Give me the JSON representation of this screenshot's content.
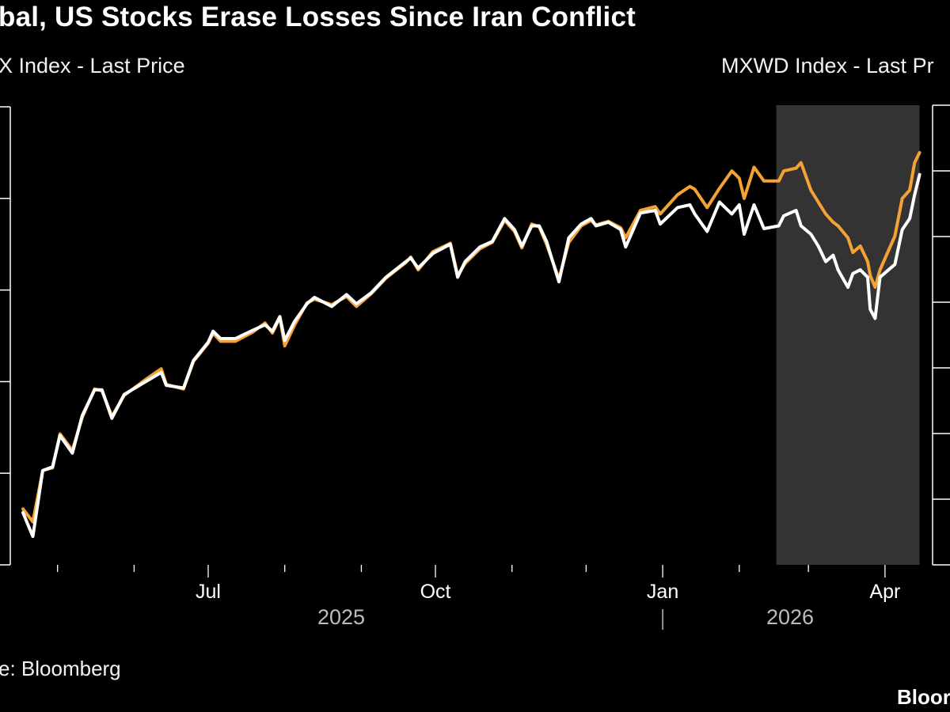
{
  "header": {
    "title": "bal, US Stocks Erase Losses Since Iran Conflict",
    "left_axis_label": "X Index - Last Price",
    "right_axis_label": "MXWD Index - Last Pr"
  },
  "footer": {
    "source": "e: Bloomberg",
    "logo": "Bloor"
  },
  "colors": {
    "background": "#000000",
    "white_series": "#ffffff",
    "orange_series": "#f5a234",
    "highlight": "#333333"
  },
  "chart_data": {
    "type": "line",
    "title": "bal, US Stocks Erase Losses Since Iran Conflict",
    "ylabel": "X Index - Last Price",
    "y2label": "MXWD Index - Last Pr",
    "ylim": [
      0,
      5
    ],
    "grid": false,
    "legend": "none",
    "x_tick_labels": [
      "Jul",
      "Oct",
      "Jan",
      "Apr"
    ],
    "x_tick_dates": [
      "2025-07-01",
      "2025-10-01",
      "2026-01-01",
      "2026-04-01"
    ],
    "year_labels": [
      "2025",
      "2026"
    ],
    "highlight_range": [
      "2026-02-16",
      "2026-04-15"
    ],
    "series": [
      {
        "color": "#ffffff",
        "points": [
          [
            "2025-04-17",
            0.57
          ],
          [
            "2025-04-21",
            0.31
          ],
          [
            "2025-04-25",
            1.03
          ],
          [
            "2025-04-29",
            1.07
          ],
          [
            "2025-05-02",
            1.41
          ],
          [
            "2025-05-07",
            1.22
          ],
          [
            "2025-05-11",
            1.63
          ],
          [
            "2025-05-16",
            1.91
          ],
          [
            "2025-05-19",
            1.91
          ],
          [
            "2025-05-23",
            1.6
          ],
          [
            "2025-05-28",
            1.86
          ],
          [
            "2025-06-05",
            1.99
          ],
          [
            "2025-06-12",
            2.1
          ],
          [
            "2025-06-14",
            1.96
          ],
          [
            "2025-06-21",
            1.93
          ],
          [
            "2025-06-25",
            2.23
          ],
          [
            "2025-07-01",
            2.43
          ],
          [
            "2025-07-03",
            2.55
          ],
          [
            "2025-07-06",
            2.47
          ],
          [
            "2025-07-12",
            2.47
          ],
          [
            "2025-07-19",
            2.56
          ],
          [
            "2025-07-24",
            2.62
          ],
          [
            "2025-07-27",
            2.55
          ],
          [
            "2025-07-30",
            2.71
          ],
          [
            "2025-08-01",
            2.45
          ],
          [
            "2025-08-05",
            2.66
          ],
          [
            "2025-08-10",
            2.85
          ],
          [
            "2025-08-13",
            2.92
          ],
          [
            "2025-08-20",
            2.82
          ],
          [
            "2025-08-26",
            2.95
          ],
          [
            "2025-08-30",
            2.85
          ],
          [
            "2025-09-05",
            2.97
          ],
          [
            "2025-09-11",
            3.14
          ],
          [
            "2025-09-19",
            3.31
          ],
          [
            "2025-09-21",
            3.35
          ],
          [
            "2025-09-24",
            3.24
          ],
          [
            "2025-09-30",
            3.4
          ],
          [
            "2025-10-07",
            3.5
          ],
          [
            "2025-10-10",
            3.14
          ],
          [
            "2025-10-13",
            3.31
          ],
          [
            "2025-10-19",
            3.47
          ],
          [
            "2025-10-24",
            3.53
          ],
          [
            "2025-10-29",
            3.78
          ],
          [
            "2025-11-02",
            3.66
          ],
          [
            "2025-11-05",
            3.48
          ],
          [
            "2025-11-09",
            3.7
          ],
          [
            "2025-11-12",
            3.7
          ],
          [
            "2025-11-15",
            3.53
          ],
          [
            "2025-11-20",
            3.09
          ],
          [
            "2025-11-24",
            3.57
          ],
          [
            "2025-11-29",
            3.72
          ],
          [
            "2025-12-03",
            3.78
          ],
          [
            "2025-12-05",
            3.7
          ],
          [
            "2025-12-10",
            3.74
          ],
          [
            "2025-12-15",
            3.66
          ],
          [
            "2025-12-17",
            3.47
          ],
          [
            "2025-12-23",
            3.84
          ],
          [
            "2025-12-29",
            3.87
          ],
          [
            "2025-12-31",
            3.72
          ],
          [
            "2026-01-07",
            3.9
          ],
          [
            "2026-01-12",
            3.93
          ],
          [
            "2026-01-14",
            3.83
          ],
          [
            "2026-01-19",
            3.64
          ],
          [
            "2026-01-24",
            3.96
          ],
          [
            "2026-01-29",
            3.83
          ],
          [
            "2026-02-01",
            3.93
          ],
          [
            "2026-02-03",
            3.61
          ],
          [
            "2026-02-07",
            3.93
          ],
          [
            "2026-02-11",
            3.67
          ],
          [
            "2026-02-17",
            3.7
          ],
          [
            "2026-02-19",
            3.81
          ],
          [
            "2026-02-24",
            3.87
          ],
          [
            "2026-02-26",
            3.7
          ],
          [
            "2026-03-02",
            3.61
          ],
          [
            "2026-03-05",
            3.48
          ],
          [
            "2026-03-08",
            3.31
          ],
          [
            "2026-03-11",
            3.38
          ],
          [
            "2026-03-13",
            3.22
          ],
          [
            "2026-03-17",
            3.03
          ],
          [
            "2026-03-19",
            3.18
          ],
          [
            "2026-03-22",
            3.22
          ],
          [
            "2026-03-25",
            3.14
          ],
          [
            "2026-03-26",
            2.79
          ],
          [
            "2026-03-28",
            2.69
          ],
          [
            "2026-03-30",
            3.14
          ],
          [
            "2026-04-05",
            3.28
          ],
          [
            "2026-04-08",
            3.66
          ],
          [
            "2026-04-11",
            3.78
          ],
          [
            "2026-04-13",
            4.04
          ],
          [
            "2026-04-15",
            4.26
          ]
        ]
      },
      {
        "color": "#f5a234",
        "points": [
          [
            "2025-04-17",
            0.61
          ],
          [
            "2025-04-21",
            0.47
          ],
          [
            "2025-04-25",
            1.03
          ],
          [
            "2025-04-29",
            1.06
          ],
          [
            "2025-05-02",
            1.43
          ],
          [
            "2025-05-07",
            1.25
          ],
          [
            "2025-05-11",
            1.61
          ],
          [
            "2025-05-16",
            1.92
          ],
          [
            "2025-05-19",
            1.9
          ],
          [
            "2025-05-23",
            1.62
          ],
          [
            "2025-05-28",
            1.85
          ],
          [
            "2025-06-05",
            2.01
          ],
          [
            "2025-06-12",
            2.14
          ],
          [
            "2025-06-14",
            1.97
          ],
          [
            "2025-06-21",
            1.92
          ],
          [
            "2025-06-25",
            2.22
          ],
          [
            "2025-07-01",
            2.42
          ],
          [
            "2025-07-03",
            2.53
          ],
          [
            "2025-07-06",
            2.44
          ],
          [
            "2025-07-12",
            2.44
          ],
          [
            "2025-07-19",
            2.54
          ],
          [
            "2025-07-24",
            2.64
          ],
          [
            "2025-07-27",
            2.53
          ],
          [
            "2025-07-30",
            2.7
          ],
          [
            "2025-08-01",
            2.39
          ],
          [
            "2025-08-05",
            2.62
          ],
          [
            "2025-08-10",
            2.86
          ],
          [
            "2025-08-13",
            2.9
          ],
          [
            "2025-08-20",
            2.84
          ],
          [
            "2025-08-26",
            2.93
          ],
          [
            "2025-08-30",
            2.82
          ],
          [
            "2025-09-05",
            2.96
          ],
          [
            "2025-09-11",
            3.13
          ],
          [
            "2025-09-19",
            3.3
          ],
          [
            "2025-09-21",
            3.36
          ],
          [
            "2025-09-24",
            3.22
          ],
          [
            "2025-09-30",
            3.42
          ],
          [
            "2025-10-07",
            3.51
          ],
          [
            "2025-10-10",
            3.16
          ],
          [
            "2025-10-13",
            3.29
          ],
          [
            "2025-10-19",
            3.45
          ],
          [
            "2025-10-24",
            3.52
          ],
          [
            "2025-10-29",
            3.76
          ],
          [
            "2025-11-02",
            3.64
          ],
          [
            "2025-11-05",
            3.46
          ],
          [
            "2025-11-09",
            3.72
          ],
          [
            "2025-11-12",
            3.69
          ],
          [
            "2025-11-15",
            3.5
          ],
          [
            "2025-11-20",
            3.12
          ],
          [
            "2025-11-24",
            3.52
          ],
          [
            "2025-11-29",
            3.7
          ],
          [
            "2025-12-03",
            3.76
          ],
          [
            "2025-12-05",
            3.71
          ],
          [
            "2025-12-10",
            3.75
          ],
          [
            "2025-12-15",
            3.68
          ],
          [
            "2025-12-17",
            3.57
          ],
          [
            "2025-12-23",
            3.87
          ],
          [
            "2025-12-29",
            3.91
          ],
          [
            "2025-12-31",
            3.83
          ],
          [
            "2026-01-07",
            4.04
          ],
          [
            "2026-01-12",
            4.13
          ],
          [
            "2026-01-14",
            4.1
          ],
          [
            "2026-01-19",
            3.9
          ],
          [
            "2026-01-24",
            4.11
          ],
          [
            "2026-01-29",
            4.3
          ],
          [
            "2026-02-01",
            4.22
          ],
          [
            "2026-02-03",
            4.0
          ],
          [
            "2026-02-07",
            4.34
          ],
          [
            "2026-02-11",
            4.19
          ],
          [
            "2026-02-17",
            4.19
          ],
          [
            "2026-02-19",
            4.3
          ],
          [
            "2026-02-24",
            4.33
          ],
          [
            "2026-02-26",
            4.39
          ],
          [
            "2026-03-02",
            4.09
          ],
          [
            "2026-03-05",
            3.96
          ],
          [
            "2026-03-08",
            3.83
          ],
          [
            "2026-03-11",
            3.74
          ],
          [
            "2026-03-13",
            3.7
          ],
          [
            "2026-03-17",
            3.57
          ],
          [
            "2026-03-19",
            3.41
          ],
          [
            "2026-03-22",
            3.48
          ],
          [
            "2026-03-25",
            3.31
          ],
          [
            "2026-03-26",
            3.16
          ],
          [
            "2026-03-28",
            3.03
          ],
          [
            "2026-03-30",
            3.22
          ],
          [
            "2026-04-05",
            3.59
          ],
          [
            "2026-04-08",
            4.0
          ],
          [
            "2026-04-11",
            4.09
          ],
          [
            "2026-04-13",
            4.39
          ],
          [
            "2026-04-15",
            4.5
          ]
        ]
      }
    ]
  }
}
